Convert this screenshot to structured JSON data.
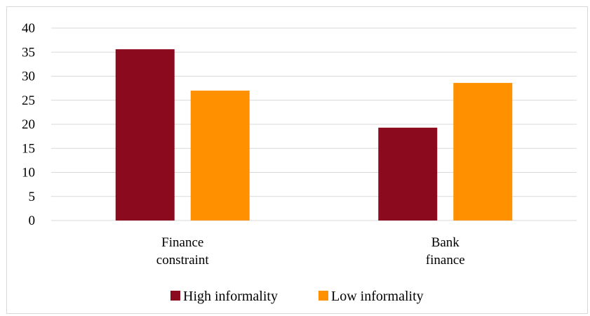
{
  "chart_data": {
    "type": "bar",
    "categories": [
      [
        "Finance",
        "constraint"
      ],
      [
        "Bank",
        "finance"
      ]
    ],
    "series": [
      {
        "name": "High informality",
        "color": "#8b0a1e",
        "values": [
          35.6,
          19.3
        ]
      },
      {
        "name": "Low informality",
        "color": "#ff9100",
        "values": [
          27.0,
          28.6
        ]
      }
    ],
    "ylim": [
      0,
      40
    ],
    "yticks": [
      0,
      5,
      10,
      15,
      20,
      25,
      30,
      35,
      40
    ],
    "grid": true,
    "legend_position": "bottom"
  }
}
